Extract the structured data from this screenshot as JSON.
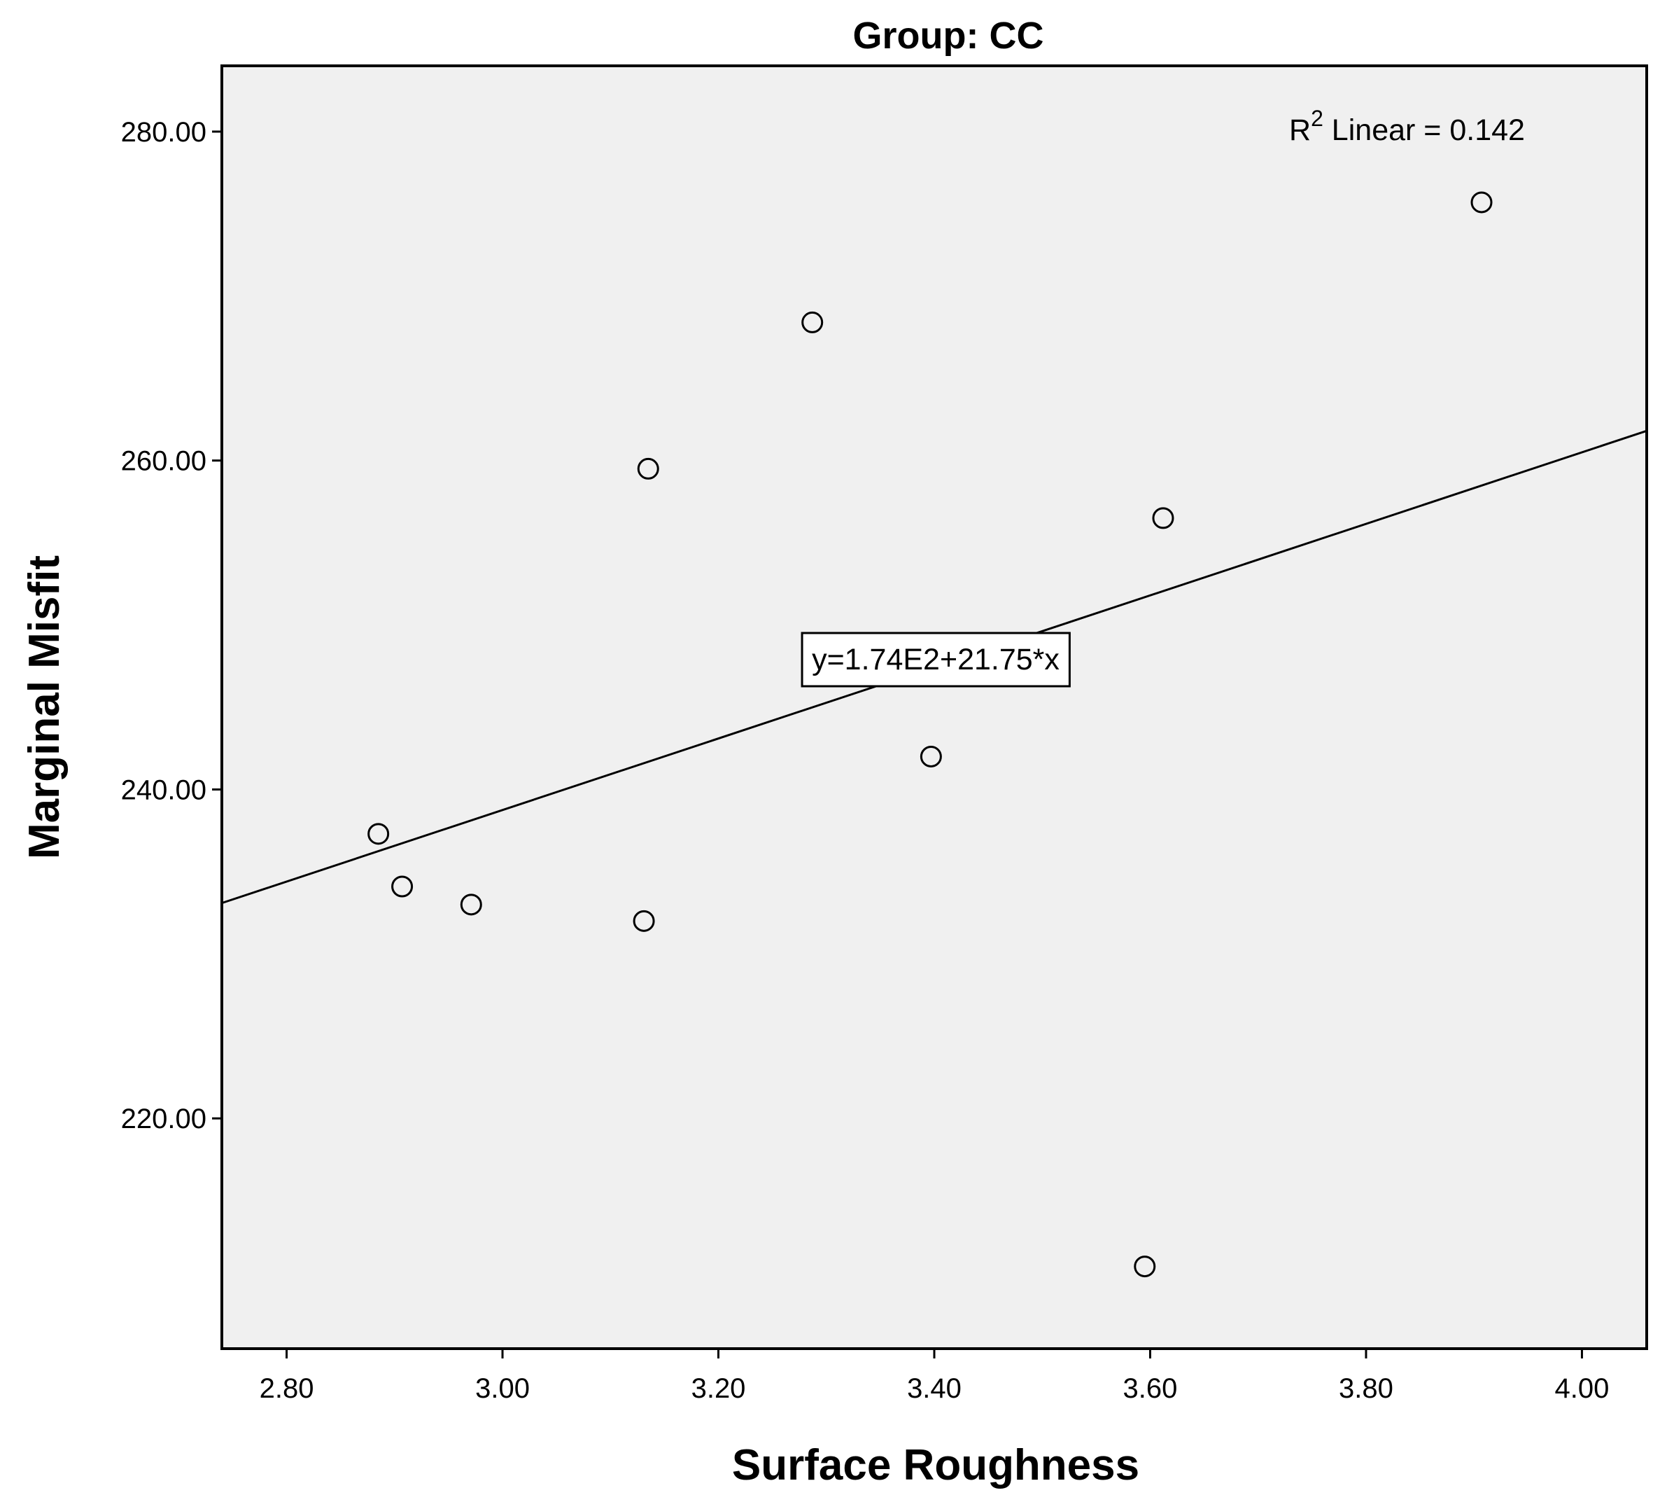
{
  "chart_data": {
    "type": "scatter",
    "title": "Group: CC",
    "xlabel": "Surface Roughness",
    "ylabel": "Marginal Misfit",
    "xlim": [
      2.74,
      4.06
    ],
    "ylim": [
      206,
      284
    ],
    "x_ticks": [
      2.8,
      3.0,
      3.2,
      3.4,
      3.6,
      3.8,
      4.0
    ],
    "x_tick_labels": [
      "2.80",
      "3.00",
      "3.20",
      "3.40",
      "3.60",
      "3.80",
      "4.00"
    ],
    "y_ticks": [
      220,
      240,
      260,
      280
    ],
    "y_tick_labels": [
      "220.00",
      "240.00",
      "260.00",
      "280.00"
    ],
    "grid": false,
    "points": [
      {
        "x": 2.885,
        "y": 237.3
      },
      {
        "x": 2.907,
        "y": 234.1
      },
      {
        "x": 2.971,
        "y": 233.0
      },
      {
        "x": 3.131,
        "y": 232.0
      },
      {
        "x": 3.135,
        "y": 259.5
      },
      {
        "x": 3.287,
        "y": 268.4
      },
      {
        "x": 3.397,
        "y": 242.0
      },
      {
        "x": 3.595,
        "y": 211.0
      },
      {
        "x": 3.612,
        "y": 256.5
      },
      {
        "x": 3.907,
        "y": 275.7
      }
    ],
    "fit_line": {
      "intercept": 173.5,
      "slope": 21.75
    },
    "equation_label": "y=1.74E2+21.75*x",
    "r2_prefix": "R",
    "r2_superscript": "2",
    "r2_text": " Linear = 0.142",
    "colors": {
      "plot_background": "#f0f0f0",
      "frame": "#000000",
      "marker": "#000000",
      "line": "#000000"
    }
  }
}
